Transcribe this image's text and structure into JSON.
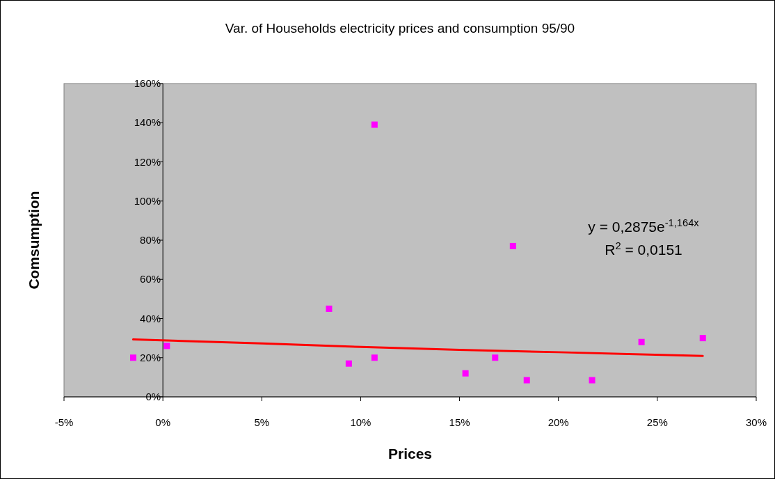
{
  "chart_data": {
    "type": "scatter",
    "title": "Var. of Households electricity prices and consumption 95/90",
    "xlabel": "Prices",
    "ylabel": "Comsumption",
    "xlim": [
      -5,
      30
    ],
    "xticks": [
      {
        "value": -5,
        "label": "-5%"
      },
      {
        "value": 0,
        "label": "0%"
      },
      {
        "value": 5,
        "label": "5%"
      },
      {
        "value": 10,
        "label": "10%"
      },
      {
        "value": 15,
        "label": "15%"
      },
      {
        "value": 20,
        "label": "20%"
      },
      {
        "value": 25,
        "label": "25%"
      },
      {
        "value": 30,
        "label": "30%"
      }
    ],
    "ylim": [
      0,
      160
    ],
    "yticks": [
      {
        "value": 0,
        "label": "0%"
      },
      {
        "value": 20,
        "label": "20%"
      },
      {
        "value": 40,
        "label": "40%"
      },
      {
        "value": 60,
        "label": "60%"
      },
      {
        "value": 80,
        "label": "80%"
      },
      {
        "value": 100,
        "label": "100%"
      },
      {
        "value": 120,
        "label": "120%"
      },
      {
        "value": 140,
        "label": "140%"
      },
      {
        "value": 160,
        "label": "160%"
      }
    ],
    "grid": false,
    "series": [
      {
        "color": "#ff00ff",
        "marker": "square",
        "x": [
          -1.5,
          0.2,
          8.4,
          9.4,
          10.7,
          10.7,
          15.3,
          16.8,
          17.7,
          18.4,
          21.7,
          24.2,
          27.3
        ],
        "values": [
          20,
          26,
          45,
          17,
          139,
          20,
          12,
          20,
          77,
          8.5,
          8.5,
          28,
          30
        ]
      },
      {
        "type": "line",
        "color": "#ff0000",
        "marker": "none",
        "line_style": "solid",
        "x": [
          -1.5,
          5,
          10,
          15,
          20,
          27.3
        ],
        "values": [
          29.3,
          27.3,
          25.5,
          24,
          22.8,
          20.9
        ]
      }
    ],
    "annotations": [
      "y = 0,2875e$^{-1,164x}$",
      "R$^{2}$ = 0,0151"
    ]
  }
}
